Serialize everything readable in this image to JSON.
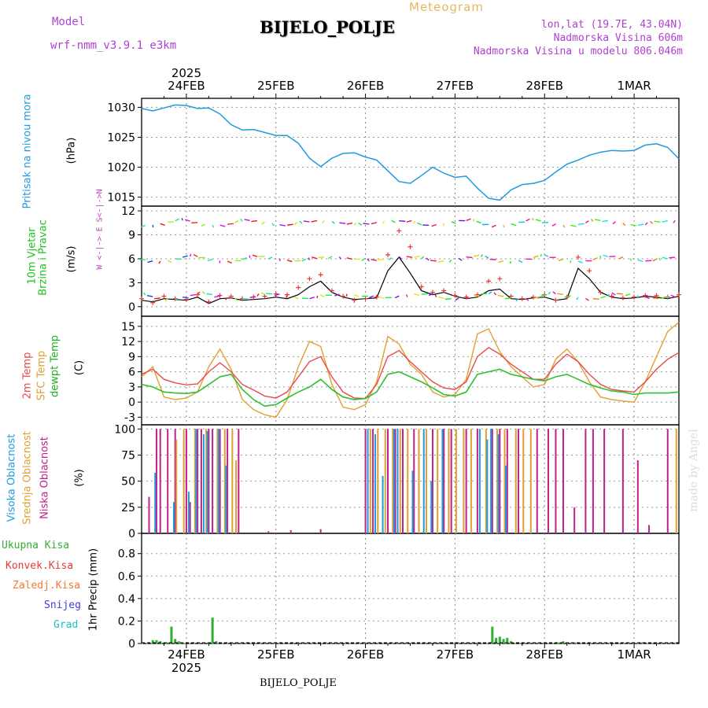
{
  "header": {
    "model_label": "Model",
    "model_name": "wrf-nmm_v3.9.1 e3km",
    "chart_kind": "Meteogram",
    "station": "BIJELO_POLJE",
    "lonlat": "lon,lat (19.7E, 43.04N)",
    "elevation": "Nadmorska Visina 606m",
    "model_elevation": "Nadmorska Visina u modelu 806.046m"
  },
  "footer": {
    "station": "BIJELO_POLJE",
    "credit": "made by Angel"
  },
  "colors": {
    "pressure": "#1e9be0",
    "wind_speed": "#000000",
    "gust": "#e83a3a",
    "temp2m": "#e84a4a",
    "sfc_temp": "#e0a030",
    "dewpoint": "#30c030",
    "cloud_high": "#1e9be0",
    "cloud_mid": "#e0a030",
    "cloud_low": "#c0208a",
    "precip_total": "#30b030",
    "precip_conv": "#e83a3a",
    "precip_frozen": "#f07a30",
    "snow": "#4040e0",
    "hail": "#20c0c0",
    "wind_label": "#20c020",
    "legend_dir": "#c040c0"
  },
  "chart_data": {
    "type": "line",
    "x_axis": {
      "year": "2025",
      "date_labels": [
        "24FEB",
        "25FEB",
        "26FEB",
        "27FEB",
        "28FEB",
        "1MAR"
      ],
      "range_hours": [
        -12,
        132
      ]
    },
    "panels": [
      {
        "id": "pressure",
        "ylabel": "Pritisak na nivou mora",
        "unit": "(hPa)",
        "yticks": [
          1015,
          1020,
          1025,
          1030
        ],
        "ylim": [
          1013.5,
          1031.5
        ],
        "series": [
          {
            "name": "Pritisak na nivou mora",
            "x": [
              -12,
              -9,
              -6,
              -3,
              0,
              3,
              6,
              9,
              12,
              15,
              18,
              21,
              24,
              27,
              30,
              33,
              36,
              39,
              42,
              45,
              48,
              51,
              54,
              57,
              60,
              63,
              66,
              69,
              72,
              75,
              78,
              81,
              84,
              87,
              90,
              93,
              96,
              99,
              102,
              105,
              108,
              111,
              114,
              117,
              120,
              123,
              126,
              129,
              132
            ],
            "values": [
              1029.8,
              1029.4,
              1029.9,
              1030.4,
              1030.3,
              1029.8,
              1029.9,
              1028.9,
              1027.1,
              1026.2,
              1026.3,
              1025.8,
              1025.3,
              1025.3,
              1024.0,
              1021.5,
              1020.1,
              1021.5,
              1022.3,
              1022.4,
              1021.7,
              1021.2,
              1019.4,
              1017.6,
              1017.3,
              1018.6,
              1020.0,
              1019.0,
              1018.3,
              1018.5,
              1016.5,
              1014.8,
              1014.5,
              1016.2,
              1017.1,
              1017.3,
              1017.8,
              1019.2,
              1020.5,
              1021.2,
              1022.0,
              1022.5,
              1022.8,
              1022.7,
              1022.8,
              1023.7,
              1023.9,
              1023.3,
              1021.4
            ]
          }
        ]
      },
      {
        "id": "wind",
        "ylabel": "10m Vjetar",
        "ylabel2": "Brzina i Pravac",
        "unit": "(m/s)",
        "yticks": [
          0,
          3,
          6,
          9,
          12
        ],
        "ylim": [
          -1.2,
          12.6
        ],
        "direction_legend": "W <-|-> E   S<-|->N",
        "series": [
          {
            "name": "Brzina vjetra",
            "x": [
              -12,
              -9,
              -6,
              -3,
              0,
              3,
              6,
              9,
              12,
              15,
              18,
              21,
              24,
              27,
              30,
              33,
              36,
              39,
              42,
              45,
              48,
              51,
              54,
              57,
              60,
              63,
              66,
              69,
              72,
              75,
              78,
              81,
              84,
              87,
              90,
              93,
              96,
              99,
              102,
              105,
              108,
              111,
              114,
              117,
              120,
              123,
              126,
              129,
              132
            ],
            "values": [
              0.8,
              0.6,
              1.0,
              0.9,
              0.8,
              1.2,
              0.4,
              1.0,
              1.1,
              0.8,
              0.9,
              1.0,
              1.2,
              1.0,
              1.5,
              2.5,
              3.2,
              1.8,
              1.2,
              0.9,
              1.0,
              1.1,
              4.5,
              6.2,
              4.2,
              2.0,
              1.5,
              1.8,
              1.3,
              1.0,
              1.2,
              2.0,
              2.2,
              1.0,
              0.9,
              1.1,
              1.2,
              0.8,
              1.0,
              4.8,
              3.5,
              1.8,
              1.2,
              1.0,
              1.1,
              1.3,
              1.2,
              1.0,
              1.3
            ]
          },
          {
            "name": "Udari vjetra",
            "x": [
              -12,
              -9,
              -6,
              -3,
              0,
              3,
              6,
              9,
              12,
              15,
              18,
              21,
              24,
              27,
              30,
              33,
              36,
              39,
              42,
              45,
              48,
              51,
              54,
              57,
              60,
              63,
              66,
              69,
              72,
              75,
              78,
              81,
              84,
              87,
              90,
              93,
              96,
              99,
              102,
              105,
              108,
              111,
              114,
              117,
              120,
              123,
              126,
              129,
              132
            ],
            "values": [
              1.0,
              0.5,
              1.3,
              1.0,
              0.9,
              1.5,
              0.6,
              1.4,
              1.3,
              1.0,
              1.2,
              1.3,
              1.6,
              1.5,
              2.4,
              3.5,
              4.0,
              2.0,
              1.3,
              0.8,
              1.0,
              1.2,
              6.5,
              9.5,
              7.5,
              2.5,
              1.8,
              2.0,
              1.4,
              1.2,
              1.5,
              3.2,
              3.5,
              1.3,
              1.0,
              1.2,
              1.5,
              0.8,
              1.2,
              6.2,
              4.5,
              1.8,
              1.3,
              1.1,
              1.2,
              1.4,
              1.4,
              1.2,
              1.5
            ]
          }
        ]
      },
      {
        "id": "temperature",
        "ylabel": "2m Temp",
        "ylabel2": "SFC Temp",
        "ylabel3": "dewpt Temp",
        "unit": "(C)",
        "yticks": [
          -3,
          0,
          3,
          6,
          9,
          12,
          15
        ],
        "ylim": [
          -4.5,
          17
        ],
        "series": [
          {
            "name": "2m Temp",
            "x": [
              -12,
              -9,
              -6,
              -3,
              0,
              3,
              6,
              9,
              12,
              15,
              18,
              21,
              24,
              27,
              30,
              33,
              36,
              39,
              42,
              45,
              48,
              51,
              54,
              57,
              60,
              63,
              66,
              69,
              72,
              75,
              78,
              81,
              84,
              87,
              90,
              93,
              96,
              99,
              102,
              105,
              108,
              111,
              114,
              117,
              120,
              123,
              126,
              129,
              132
            ],
            "values": [
              5.5,
              6.5,
              4.5,
              3.8,
              3.4,
              3.6,
              6.0,
              7.8,
              6.0,
              3.5,
              2.4,
              1.2,
              0.8,
              2.0,
              5.0,
              8.0,
              9.0,
              5.0,
              2.0,
              0.8,
              0.7,
              3.5,
              9.0,
              10.2,
              8.0,
              6.0,
              4.0,
              2.8,
              2.5,
              4.0,
              9.0,
              10.8,
              9.5,
              7.5,
              6.0,
              4.5,
              4.5,
              7.5,
              9.5,
              8.0,
              5.5,
              3.5,
              2.5,
              2.2,
              2.0,
              4.0,
              6.5,
              8.5,
              9.8
            ]
          },
          {
            "name": "SFC Temp",
            "x": [
              -12,
              -9,
              -6,
              -3,
              0,
              3,
              6,
              9,
              12,
              15,
              18,
              21,
              24,
              27,
              30,
              33,
              36,
              39,
              42,
              45,
              48,
              51,
              54,
              57,
              60,
              63,
              66,
              69,
              72,
              75,
              78,
              81,
              84,
              87,
              90,
              93,
              96,
              99,
              102,
              105,
              108,
              111,
              114,
              117,
              120,
              123,
              126,
              129,
              132
            ],
            "values": [
              5.0,
              7.0,
              1.0,
              0.5,
              0.8,
              2.0,
              7.0,
              10.5,
              6.5,
              0.5,
              -1.5,
              -2.5,
              -3.0,
              0.5,
              7.0,
              12.0,
              11.0,
              3.5,
              -1.0,
              -1.5,
              -0.5,
              4.0,
              13.0,
              11.5,
              7.5,
              5.5,
              2.0,
              1.0,
              1.5,
              4.5,
              13.5,
              14.5,
              10.0,
              7.0,
              5.0,
              3.0,
              3.5,
              8.5,
              10.5,
              8.0,
              4.0,
              1.0,
              0.5,
              0.2,
              0.0,
              4.0,
              9.0,
              14.0,
              15.8
            ]
          },
          {
            "name": "dewpt Temp",
            "x": [
              -12,
              -9,
              -6,
              -3,
              0,
              3,
              6,
              9,
              12,
              15,
              18,
              21,
              24,
              27,
              30,
              33,
              36,
              39,
              42,
              45,
              48,
              51,
              54,
              57,
              60,
              63,
              66,
              69,
              72,
              75,
              78,
              81,
              84,
              87,
              90,
              93,
              96,
              99,
              102,
              105,
              108,
              111,
              114,
              117,
              120,
              123,
              126,
              129,
              132
            ],
            "values": [
              3.5,
              3.0,
              2.0,
              1.8,
              1.7,
              2.0,
              3.5,
              5.0,
              5.5,
              2.5,
              0.5,
              -0.8,
              -0.5,
              0.8,
              2.0,
              3.0,
              4.5,
              2.5,
              1.0,
              0.5,
              0.7,
              2.0,
              5.5,
              6.0,
              5.0,
              4.0,
              2.8,
              1.5,
              1.2,
              2.0,
              5.5,
              6.0,
              6.5,
              5.5,
              5.0,
              4.5,
              4.2,
              5.0,
              5.5,
              4.5,
              3.5,
              2.8,
              2.2,
              2.0,
              1.5,
              1.8,
              1.8,
              1.8,
              2.0
            ]
          }
        ]
      },
      {
        "id": "clouds",
        "ylabel": "Visoka Oblacnost",
        "ylabel2": "Srednja Oblacnost",
        "ylabel3": "Niska Oblacnost",
        "unit": "(%)",
        "yticks": [
          0,
          25,
          50,
          75,
          100
        ],
        "ylim": [
          0,
          104
        ],
        "series": [
          {
            "name": "Niska Oblacnost",
            "x": [
              -10,
              -8,
              -7,
              -5,
              -3,
              0,
              1,
              3,
              4,
              6,
              7,
              9,
              11,
              14,
              22,
              28,
              36,
              48,
              50,
              54,
              56,
              58,
              61,
              66,
              69,
              71,
              75,
              78,
              82,
              84,
              86,
              89,
              94,
              97,
              99,
              101,
              104,
              107,
              109,
              112,
              117,
              121,
              124,
              129
            ],
            "values": [
              35,
              100,
              100,
              100,
              100,
              100,
              30,
              100,
              100,
              100,
              100,
              100,
              100,
              100,
              2,
              3,
              4,
              100,
              100,
              100,
              100,
              100,
              100,
              100,
              100,
              100,
              100,
              100,
              100,
              100,
              100,
              100,
              100,
              100,
              100,
              100,
              25,
              100,
              100,
              100,
              100,
              70,
              8,
              100
            ]
          },
          {
            "name": "Srednja Oblacnost",
            "x": [
              -3,
              -1,
              2,
              5,
              8,
              10,
              12,
              13,
              49,
              51,
              53,
              55,
              57,
              59,
              62,
              64,
              67,
              70,
              72,
              74,
              76,
              80,
              83,
              85,
              88,
              90,
              92,
              131
            ],
            "values": [
              90,
              100,
              100,
              100,
              100,
              100,
              100,
              70,
              100,
              100,
              100,
              100,
              100,
              100,
              100,
              100,
              100,
              100,
              100,
              100,
              100,
              100,
              100,
              100,
              100,
              100,
              100,
              100
            ]
          },
          {
            "name": "Visoka Oblacnost",
            "x": [
              -9,
              -4,
              0,
              2,
              4,
              5,
              8,
              10,
              48,
              50,
              52,
              55,
              56,
              60,
              63,
              65,
              68,
              78,
              80,
              81,
              83,
              85
            ],
            "values": [
              58,
              30,
              40,
              100,
              95,
              98,
              100,
              65,
              100,
              95,
              55,
              100,
              100,
              60,
              100,
              50,
              100,
              100,
              90,
              100,
              95,
              65
            ]
          }
        ]
      },
      {
        "id": "precip",
        "ylabel": "1hr Precip (mm)",
        "legend": [
          "Ukupna Kisa",
          "Konvek.Kisa",
          "Zaledj.Kisa",
          "Snijeg",
          "Grad"
        ],
        "yticks": [
          0,
          0.2,
          0.4,
          0.6,
          0.8
        ],
        "ylim": [
          0,
          0.98
        ],
        "series": [
          {
            "name": "Ukupna Kisa",
            "x": [
              -9,
              -8,
              -7,
              -5,
              -4,
              -3,
              -2,
              -1,
              7,
              8,
              82,
              83,
              84,
              85,
              86,
              87,
              100,
              101,
              104,
              122
            ],
            "values": [
              0.03,
              0.03,
              0.02,
              0.01,
              0.15,
              0.04,
              0.02,
              0.01,
              0.23,
              0.02,
              0.15,
              0.05,
              0.06,
              0.04,
              0.05,
              0.02,
              0.01,
              0.02,
              0.01,
              0.01
            ]
          }
        ]
      }
    ]
  }
}
